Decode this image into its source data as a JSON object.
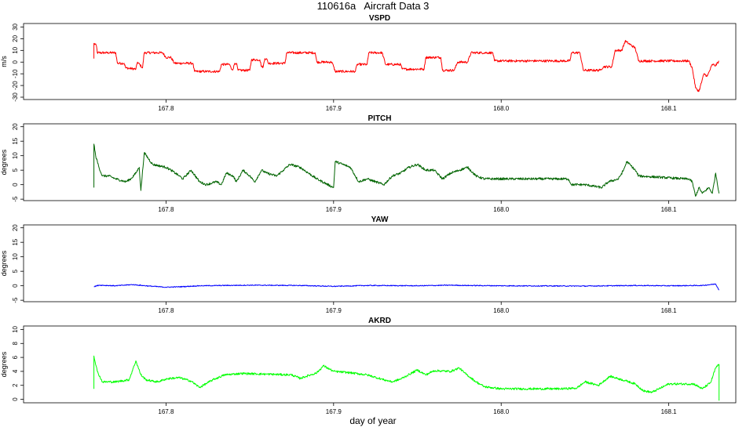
{
  "page": {
    "title": "110616a   Aircraft Data 3",
    "xlabel": "day of year"
  },
  "chart_data": [
    {
      "type": "line",
      "title": "VSPD",
      "ylabel": "m/s",
      "color": "#ff0000",
      "xlim": [
        167.715,
        168.14
      ],
      "ylim": [
        -32,
        33
      ],
      "xticks": [
        167.8,
        167.9,
        168.0,
        168.1
      ],
      "xtick_labels": [
        "167.8",
        "167.9",
        "168.0",
        "168.1"
      ],
      "yticks": [
        -30,
        -20,
        -10,
        0,
        10,
        20,
        30
      ],
      "ytick_labels": [
        "-30",
        "-20",
        "-10",
        "0",
        "10",
        "20",
        "30"
      ],
      "noise": 1.0,
      "series": [
        {
          "x": [
            167.757,
            167.757,
            167.7585,
            167.759,
            167.77,
            167.771,
            167.775,
            167.776,
            167.782,
            167.783,
            167.786,
            167.787,
            167.798,
            167.8,
            167.803,
            167.805,
            167.816,
            167.817,
            167.832,
            167.833,
            167.838,
            167.839,
            167.84,
            167.841,
            167.842,
            167.843,
            167.85,
            167.851,
            167.856,
            167.857,
            167.858,
            167.859,
            167.86,
            167.861,
            167.871,
            167.872,
            167.889,
            167.89,
            167.899,
            167.901,
            167.913,
            167.914,
            167.92,
            167.921,
            167.929,
            167.931,
            167.94,
            167.941,
            167.954,
            167.955,
            167.964,
            167.965,
            167.972,
            167.974,
            167.98,
            167.982,
            167.995,
            167.996,
            168.041,
            168.042,
            168.047,
            168.049,
            168.059,
            168.061,
            168.066,
            168.068,
            168.072,
            168.074,
            168.08,
            168.082,
            168.112,
            168.114,
            168.116,
            168.118,
            168.121,
            168.123,
            168.126,
            168.128,
            168.13
          ],
          "y": [
            3,
            16,
            14,
            8,
            8,
            -1,
            -1,
            -5,
            -6,
            0,
            -5,
            8,
            8,
            4,
            4,
            -1,
            -1,
            -8,
            -8,
            -2,
            -2,
            -6,
            -6,
            -1,
            -1,
            -7,
            -7,
            2,
            2,
            -4,
            -4,
            3,
            3,
            -1,
            -1,
            8,
            8,
            0,
            0,
            -8,
            -8,
            -2,
            -2,
            8,
            8,
            -2,
            -2,
            -6,
            -6,
            4,
            4,
            -7,
            -7,
            0,
            0,
            8,
            8,
            1,
            1,
            8,
            8,
            -7,
            -7,
            -4,
            -4,
            10,
            10,
            18,
            12,
            1,
            1,
            -5,
            -22,
            -25,
            -10,
            -12,
            -2,
            -3,
            1
          ]
        }
      ]
    },
    {
      "type": "line",
      "title": "PITCH",
      "ylabel": "degrees",
      "color": "#006400",
      "xlim": [
        167.715,
        168.14
      ],
      "ylim": [
        -5.5,
        21
      ],
      "xticks": [
        167.8,
        167.9,
        168.0,
        168.1
      ],
      "xtick_labels": [
        "167.8",
        "167.9",
        "168.0",
        "168.1"
      ],
      "yticks": [
        -5,
        0,
        5,
        10,
        15,
        20
      ],
      "ytick_labels": [
        "-5",
        "0",
        "5",
        "10",
        "15",
        "20"
      ],
      "noise": 0.4,
      "series": [
        {
          "x": [
            167.757,
            167.757,
            167.758,
            167.76,
            167.762,
            167.766,
            167.77,
            167.776,
            167.779,
            167.782,
            167.784,
            167.785,
            167.787,
            167.792,
            167.8,
            167.803,
            167.808,
            167.81,
            167.815,
            167.82,
            167.824,
            167.83,
            167.833,
            167.836,
            167.84,
            167.842,
            167.846,
            167.85,
            167.853,
            167.857,
            167.86,
            167.866,
            167.87,
            167.874,
            167.88,
            167.89,
            167.9,
            167.901,
            167.91,
            167.915,
            167.92,
            167.925,
            167.93,
            167.935,
            167.94,
            167.945,
            167.95,
            167.955,
            167.96,
            167.965,
            167.97,
            167.975,
            167.98,
            167.985,
            167.99,
            168.04,
            168.042,
            168.05,
            168.06,
            168.064,
            168.07,
            168.073,
            168.075,
            168.08,
            168.082,
            168.11,
            168.112,
            168.114,
            168.116,
            168.118,
            168.12,
            168.124,
            168.126,
            168.128,
            168.13
          ],
          "y": [
            -1,
            14,
            10,
            6,
            3,
            3,
            2,
            1,
            2,
            4,
            6,
            -2,
            11,
            7,
            6,
            5,
            3,
            2,
            5,
            1,
            0,
            1,
            0,
            4,
            3,
            1,
            5,
            3,
            1,
            5,
            4,
            3,
            5,
            7,
            6,
            2,
            -1,
            8,
            6,
            1,
            2,
            1,
            0,
            3,
            4,
            6,
            7,
            5,
            5,
            2,
            4,
            5,
            6,
            3,
            2,
            2,
            0,
            0,
            -1,
            1,
            2,
            5,
            8,
            5,
            3,
            2,
            2,
            1,
            -4,
            -1,
            -3,
            -1,
            -3,
            4,
            -3
          ]
        }
      ]
    },
    {
      "type": "line",
      "title": "YAW",
      "ylabel": "degrees",
      "color": "#0000ff",
      "xlim": [
        167.715,
        168.14
      ],
      "ylim": [
        -5.5,
        21
      ],
      "xticks": [
        167.8,
        167.9,
        168.0,
        168.1
      ],
      "xtick_labels": [
        "167.8",
        "167.9",
        "168.0",
        "168.1"
      ],
      "yticks": [
        -5,
        0,
        5,
        10,
        15,
        20
      ],
      "ytick_labels": [
        "-5",
        "0",
        "5",
        "10",
        "15",
        "20"
      ],
      "noise": 0.15,
      "series": [
        {
          "x": [
            167.757,
            167.76,
            167.77,
            167.78,
            167.79,
            167.8,
            167.81,
            167.82,
            167.85,
            167.88,
            167.9,
            167.92,
            167.95,
            167.97,
            167.98,
            168.0,
            168.05,
            168.08,
            168.1,
            168.12,
            168.128,
            168.13
          ],
          "y": [
            -0.3,
            0.2,
            0.0,
            0.4,
            -0.1,
            -0.5,
            -0.3,
            0.0,
            0.2,
            0.1,
            -0.2,
            0.1,
            0.0,
            0.2,
            0.1,
            0.0,
            -0.1,
            0.1,
            0.0,
            0.1,
            0.6,
            -1.5
          ]
        }
      ]
    },
    {
      "type": "line",
      "title": "AKRD",
      "ylabel": "degrees",
      "color": "#00ff00",
      "xlim": [
        167.715,
        168.14
      ],
      "ylim": [
        -0.5,
        10.5
      ],
      "xticks": [
        167.8,
        167.9,
        168.0,
        168.1
      ],
      "xtick_labels": [
        "167.8",
        "167.9",
        "168.0",
        "168.1"
      ],
      "yticks": [
        0,
        2,
        4,
        6,
        8,
        10
      ],
      "ytick_labels": [
        "0",
        "2",
        "4",
        "6",
        "8",
        "10"
      ],
      "noise": 0.15,
      "series": [
        {
          "x": [
            167.757,
            167.757,
            167.759,
            167.762,
            167.77,
            167.778,
            167.782,
            167.785,
            167.788,
            167.792,
            167.795,
            167.8,
            167.803,
            167.808,
            167.815,
            167.82,
            167.828,
            167.835,
            167.845,
            167.86,
            167.875,
            167.88,
            167.89,
            167.894,
            167.9,
            167.91,
            167.92,
            167.93,
            167.935,
            167.94,
            167.95,
            167.955,
            167.96,
            167.97,
            167.975,
            167.978,
            167.985,
            167.99,
            168.0,
            168.02,
            168.035,
            168.045,
            168.05,
            168.058,
            168.065,
            168.075,
            168.08,
            168.085,
            168.09,
            168.1,
            168.11,
            168.115,
            168.12,
            168.125,
            168.128,
            168.13,
            168.13
          ],
          "y": [
            1.5,
            6.2,
            4.0,
            2.5,
            2.5,
            2.8,
            5.5,
            3.5,
            2.8,
            2.6,
            2.5,
            2.9,
            3.0,
            3.1,
            2.6,
            1.7,
            2.8,
            3.5,
            3.7,
            3.6,
            3.5,
            3.0,
            3.8,
            4.8,
            4.0,
            3.8,
            3.5,
            2.8,
            2.5,
            2.9,
            4.2,
            3.5,
            4.1,
            4.0,
            4.5,
            3.8,
            2.5,
            1.8,
            1.5,
            1.5,
            1.5,
            1.6,
            2.5,
            2.0,
            3.3,
            2.6,
            2.2,
            1.2,
            1.0,
            2.2,
            2.2,
            2.2,
            1.5,
            2.4,
            4.5,
            5.0,
            -0.2
          ]
        }
      ]
    }
  ]
}
